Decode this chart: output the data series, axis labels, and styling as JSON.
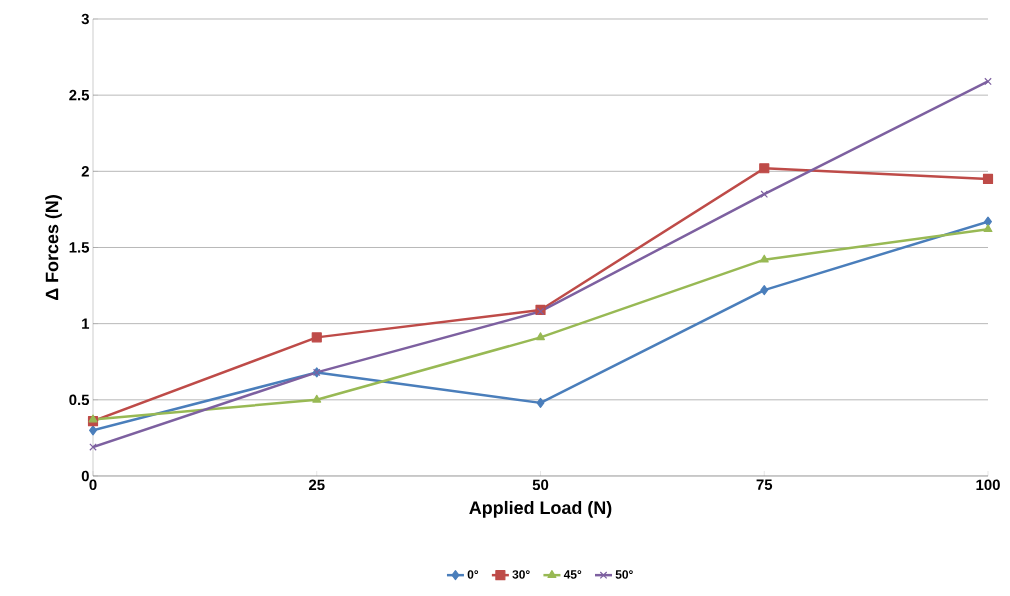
{
  "chart_data": {
    "type": "line",
    "xlabel": "Applied Load (N)",
    "ylabel": "Δ Forces (N)",
    "x": [
      0,
      25,
      50,
      75,
      100
    ],
    "xlim": [
      0,
      100
    ],
    "xticks": [
      0,
      25,
      50,
      75,
      100
    ],
    "ylim": [
      0,
      3
    ],
    "yticks": [
      0,
      0.5,
      1,
      1.5,
      2,
      2.5,
      3
    ],
    "grid": "y",
    "legend": "bottom",
    "line_style": "solid",
    "series": [
      {
        "name": "0°",
        "color": "#4a7ebb",
        "marker": "diamond",
        "values": [
          0.3,
          0.68,
          0.48,
          1.22,
          1.67
        ]
      },
      {
        "name": "30°",
        "color": "#be4b48",
        "marker": "square",
        "values": [
          0.36,
          0.91,
          1.09,
          2.02,
          1.95
        ]
      },
      {
        "name": "45°",
        "color": "#98b954",
        "marker": "triangle",
        "values": [
          0.37,
          0.5,
          0.91,
          1.42,
          1.62
        ]
      },
      {
        "name": "50°",
        "color": "#7d60a0",
        "marker": "cross",
        "values": [
          0.19,
          0.68,
          1.08,
          1.85,
          2.59
        ]
      }
    ]
  }
}
